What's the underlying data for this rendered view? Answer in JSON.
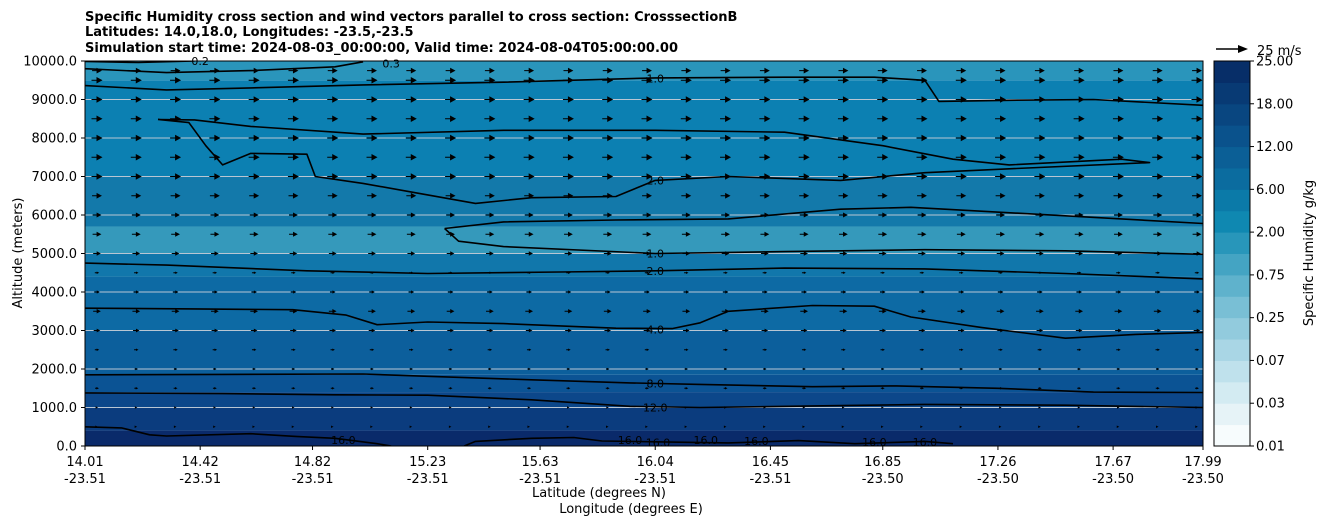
{
  "chart_data": {
    "type": "heatmap",
    "title_lines": [
      "Specific Humidity cross section and wind vectors parallel to cross section: CrosssectionB",
      "Latitudes: 14.0,18.0, Longitudes: -23.5,-23.5",
      "Simulation start time: 2024-08-03_00:00:00, Valid time: 2024-08-04T05:00:00.00"
    ],
    "ylabel": "Altitude (meters)",
    "xlabel_lines": [
      "Latitude (degrees N)",
      "Longitude (degrees E)"
    ],
    "ylim": [
      0,
      10000
    ],
    "y_ticks": [
      {
        "value": 0,
        "label": "0.0"
      },
      {
        "value": 1000,
        "label": "1000.0"
      },
      {
        "value": 2000,
        "label": "2000.0"
      },
      {
        "value": 3000,
        "label": "3000.0"
      },
      {
        "value": 4000,
        "label": "4000.0"
      },
      {
        "value": 5000,
        "label": "5000.0"
      },
      {
        "value": 6000,
        "label": "6000.0"
      },
      {
        "value": 7000,
        "label": "7000.0"
      },
      {
        "value": 8000,
        "label": "8000.0"
      },
      {
        "value": 9000,
        "label": "9000.0"
      },
      {
        "value": 10000,
        "label": "10000.0"
      }
    ],
    "xlim": [
      14.01,
      17.99
    ],
    "x_ticks": [
      {
        "lat": 14.01,
        "lat_label": "14.01",
        "lon_label": "-23.51"
      },
      {
        "lat": 14.42,
        "lat_label": "14.42",
        "lon_label": "-23.51"
      },
      {
        "lat": 14.82,
        "lat_label": "14.82",
        "lon_label": "-23.51"
      },
      {
        "lat": 15.23,
        "lat_label": "15.23",
        "lon_label": "-23.51"
      },
      {
        "lat": 15.63,
        "lat_label": "15.63",
        "lon_label": "-23.51"
      },
      {
        "lat": 16.04,
        "lat_label": "16.04",
        "lon_label": "-23.51"
      },
      {
        "lat": 16.45,
        "lat_label": "16.45",
        "lon_label": "-23.51"
      },
      {
        "lat": 16.85,
        "lat_label": "16.85",
        "lon_label": "-23.50"
      },
      {
        "lat": 17.26,
        "lat_label": "17.26",
        "lon_label": "-23.50"
      },
      {
        "lat": 17.67,
        "lat_label": "17.67",
        "lon_label": "-23.50"
      },
      {
        "lat": 17.99,
        "lat_label": "17.99",
        "lon_label": "-23.50"
      }
    ],
    "humidity_bands": [
      {
        "from": 0,
        "to": 400,
        "value": 17.0,
        "color": "#0a2a6a"
      },
      {
        "from": 400,
        "to": 1000,
        "value": 13.0,
        "color": "#0b3c7e"
      },
      {
        "from": 1000,
        "to": 1400,
        "value": 11.0,
        "color": "#0c478a"
      },
      {
        "from": 1400,
        "to": 1850,
        "value": 9.0,
        "color": "#0b5394"
      },
      {
        "from": 1850,
        "to": 3000,
        "value": 6.0,
        "color": "#0c5f9c"
      },
      {
        "from": 3000,
        "to": 4400,
        "value": 3.5,
        "color": "#0d6aa4"
      },
      {
        "from": 4400,
        "to": 5000,
        "value": 2.5,
        "color": "#1177ab"
      },
      {
        "from": 5000,
        "to": 5700,
        "value": 1.3,
        "color": "#3599bb"
      },
      {
        "from": 5700,
        "to": 7000,
        "value": 2.2,
        "color": "#1379aa"
      },
      {
        "from": 7000,
        "to": 9500,
        "value": 1.8,
        "color": "#0c80b2"
      },
      {
        "from": 9500,
        "to": 10000,
        "value": 0.6,
        "color": "#2a95bb"
      }
    ],
    "contours": [
      {
        "level_label": "16.0",
        "label_positions": [
          [
            14.93,
            150
          ],
          [
            15.95,
            150
          ],
          [
            16.05,
            90
          ],
          [
            16.22,
            150
          ],
          [
            16.4,
            130
          ],
          [
            16.82,
            110
          ],
          [
            17.0,
            110
          ]
        ],
        "points": [
          [
            14.01,
            500
          ],
          [
            14.14,
            470
          ],
          [
            14.24,
            290
          ],
          [
            14.3,
            260
          ],
          [
            14.6,
            320
          ],
          [
            14.76,
            250
          ],
          [
            14.9,
            200
          ],
          [
            15.05,
            60
          ],
          [
            15.1,
            0
          ]
        ]
      },
      {
        "level_label": "16.0",
        "label_positions": [],
        "points": [
          [
            15.36,
            0
          ],
          [
            15.4,
            120
          ],
          [
            15.6,
            200
          ],
          [
            15.75,
            220
          ],
          [
            15.85,
            130
          ],
          [
            16.04,
            110
          ],
          [
            16.3,
            80
          ],
          [
            16.55,
            140
          ],
          [
            16.75,
            60
          ],
          [
            17.0,
            120
          ],
          [
            17.1,
            60
          ]
        ]
      },
      {
        "level_label": "12.0",
        "label_positions": [
          [
            16.04,
            1000
          ]
        ],
        "points": [
          [
            14.01,
            1380
          ],
          [
            14.5,
            1360
          ],
          [
            14.9,
            1330
          ],
          [
            15.23,
            1320
          ],
          [
            15.6,
            1200
          ],
          [
            15.95,
            1030
          ],
          [
            16.2,
            1000
          ],
          [
            16.7,
            1050
          ],
          [
            17.0,
            1080
          ],
          [
            17.5,
            1060
          ],
          [
            17.99,
            1000
          ]
        ]
      },
      {
        "level_label": "8.0",
        "label_positions": [
          [
            16.04,
            1620
          ]
        ],
        "points": [
          [
            14.01,
            1850
          ],
          [
            14.5,
            1860
          ],
          [
            15.0,
            1870
          ],
          [
            15.23,
            1810
          ],
          [
            15.6,
            1720
          ],
          [
            15.95,
            1640
          ],
          [
            16.2,
            1600
          ],
          [
            16.6,
            1540
          ],
          [
            16.9,
            1560
          ],
          [
            17.26,
            1500
          ],
          [
            17.6,
            1400
          ],
          [
            17.99,
            1390
          ]
        ]
      },
      {
        "level_label": "4.0",
        "label_positions": [
          [
            16.04,
            3030
          ]
        ],
        "points": [
          [
            14.01,
            3580
          ],
          [
            14.4,
            3560
          ],
          [
            14.75,
            3540
          ],
          [
            14.94,
            3400
          ],
          [
            15.05,
            3150
          ],
          [
            15.23,
            3220
          ],
          [
            15.5,
            3180
          ],
          [
            15.9,
            3060
          ],
          [
            16.1,
            3050
          ],
          [
            16.2,
            3200
          ],
          [
            16.3,
            3500
          ],
          [
            16.6,
            3650
          ],
          [
            16.82,
            3630
          ],
          [
            16.95,
            3350
          ],
          [
            17.2,
            3080
          ],
          [
            17.5,
            2800
          ],
          [
            17.75,
            2900
          ],
          [
            17.99,
            2950
          ]
        ]
      },
      {
        "level_label": "2.0",
        "label_positions": [
          [
            16.04,
            4550
          ]
        ],
        "points": [
          [
            14.01,
            4750
          ],
          [
            14.3,
            4700
          ],
          [
            14.8,
            4550
          ],
          [
            15.23,
            4480
          ],
          [
            15.7,
            4520
          ],
          [
            16.04,
            4550
          ],
          [
            16.5,
            4620
          ],
          [
            17.0,
            4600
          ],
          [
            17.5,
            4480
          ],
          [
            17.99,
            4340
          ]
        ]
      },
      {
        "level_label": "1.0",
        "label_positions": [
          [
            16.04,
            5000
          ]
        ],
        "points": [
          [
            15.29,
            5650
          ],
          [
            15.34,
            5320
          ],
          [
            15.5,
            5180
          ],
          [
            16.04,
            5000
          ],
          [
            16.5,
            5050
          ],
          [
            17.0,
            5100
          ],
          [
            17.5,
            5070
          ],
          [
            17.99,
            4980
          ]
        ]
      },
      {
        "level_label": "",
        "label_positions": [],
        "points": [
          [
            15.29,
            5650
          ],
          [
            15.5,
            5820
          ],
          [
            15.9,
            5870
          ],
          [
            16.3,
            5900
          ],
          [
            16.7,
            6150
          ],
          [
            16.95,
            6200
          ],
          [
            17.2,
            6100
          ],
          [
            17.5,
            5980
          ],
          [
            17.99,
            5780
          ]
        ]
      },
      {
        "level_label": "2.0",
        "label_positions": [
          [
            16.04,
            6890
          ]
        ],
        "points": [
          [
            14.27,
            8480
          ],
          [
            14.38,
            8400
          ],
          [
            14.44,
            7800
          ],
          [
            14.5,
            7300
          ],
          [
            14.6,
            7600
          ],
          [
            14.8,
            7580
          ],
          [
            14.83,
            7000
          ],
          [
            15.0,
            6820
          ],
          [
            15.2,
            6560
          ],
          [
            15.4,
            6300
          ],
          [
            15.6,
            6450
          ],
          [
            15.9,
            6480
          ],
          [
            16.04,
            6900
          ],
          [
            16.3,
            7000
          ],
          [
            16.7,
            6900
          ],
          [
            17.0,
            7100
          ],
          [
            17.3,
            7200
          ],
          [
            17.8,
            7360
          ],
          [
            17.7,
            7450
          ],
          [
            17.3,
            7300
          ],
          [
            17.1,
            7450
          ],
          [
            16.85,
            7800
          ],
          [
            16.5,
            8150
          ],
          [
            16.04,
            8200
          ],
          [
            15.5,
            8200
          ],
          [
            15.0,
            8100
          ],
          [
            14.6,
            8300
          ],
          [
            14.4,
            8470
          ],
          [
            14.27,
            8480
          ]
        ]
      },
      {
        "level_label": "1.0",
        "label_positions": [
          [
            16.04,
            9550
          ]
        ],
        "points": [
          [
            14.01,
            9360
          ],
          [
            14.3,
            9250
          ],
          [
            14.6,
            9300
          ],
          [
            15.0,
            9380
          ],
          [
            15.5,
            9450
          ],
          [
            16.04,
            9560
          ],
          [
            16.5,
            9580
          ],
          [
            16.82,
            9580
          ],
          [
            17.0,
            9500
          ],
          [
            17.05,
            8950
          ],
          [
            17.3,
            8980
          ],
          [
            17.6,
            9000
          ],
          [
            17.99,
            8850
          ]
        ]
      },
      {
        "level_label": "0.3",
        "label_positions": [
          [
            15.1,
            9930
          ]
        ],
        "points": [
          [
            14.01,
            9800
          ],
          [
            14.3,
            9700
          ],
          [
            14.6,
            9750
          ],
          [
            14.9,
            9850
          ],
          [
            15.0,
            9980
          ]
        ]
      },
      {
        "level_label": "0.2",
        "label_positions": [
          [
            14.42,
            10000
          ]
        ],
        "points": [
          [
            14.01,
            9990
          ],
          [
            14.2,
            9960
          ],
          [
            14.4,
            10000
          ]
        ]
      }
    ],
    "colorbar": {
      "label": "Specific Humidity g/kg",
      "levels": [
        {
          "label": "0.01",
          "color": "#f7fcfd"
        },
        {
          "label": "",
          "color": "#e6f3f7"
        },
        {
          "label": "0.03",
          "color": "#d3ebf2"
        },
        {
          "label": "",
          "color": "#bfe1ec"
        },
        {
          "label": "0.07",
          "color": "#a9d6e5"
        },
        {
          "label": "",
          "color": "#92cbdd"
        },
        {
          "label": "0.25",
          "color": "#79bfd5"
        },
        {
          "label": "",
          "color": "#5fb2cc"
        },
        {
          "label": "0.75",
          "color": "#44a4c3"
        },
        {
          "label": "",
          "color": "#2896ba"
        },
        {
          "label": "2.00",
          "color": "#0f88b1"
        },
        {
          "label": "",
          "color": "#0b7aa8"
        },
        {
          "label": "6.00",
          "color": "#0b6c9f"
        },
        {
          "label": "",
          "color": "#0b5f96"
        },
        {
          "label": "12.00",
          "color": "#0a528c"
        },
        {
          "label": "",
          "color": "#094680"
        },
        {
          "label": "18.00",
          "color": "#083a74"
        },
        {
          "label": "",
          "color": "#072e68"
        },
        {
          "label": "25.00",
          "color": "#06235c"
        }
      ]
    },
    "wind_reference": {
      "label": "25 m/s",
      "speed": 25
    },
    "wind_rows": [
      {
        "alt": 9750,
        "strength": 0.9
      },
      {
        "alt": 9500,
        "strength": 1.0
      },
      {
        "alt": 9000,
        "strength": 1.0
      },
      {
        "alt": 8500,
        "strength": 1.0
      },
      {
        "alt": 8000,
        "strength": 1.0
      },
      {
        "alt": 7500,
        "strength": 1.0
      },
      {
        "alt": 7000,
        "strength": 1.0
      },
      {
        "alt": 6500,
        "strength": 0.9
      },
      {
        "alt": 6000,
        "strength": 0.8
      },
      {
        "alt": 5500,
        "strength": 0.8
      },
      {
        "alt": 5000,
        "strength": 0.7
      },
      {
        "alt": 4500,
        "strength": 0.4
      },
      {
        "alt": 4000,
        "strength": 0.5
      },
      {
        "alt": 3500,
        "strength": 0.7
      },
      {
        "alt": 3000,
        "strength": 0.6
      },
      {
        "alt": 2500,
        "strength": 0.4
      },
      {
        "alt": 2000,
        "strength": 0.3
      },
      {
        "alt": 1500,
        "strength": 0.35
      },
      {
        "alt": 1000,
        "strength": 0.2
      },
      {
        "alt": 500,
        "strength": 0.15
      }
    ],
    "wind_columns": 29
  }
}
